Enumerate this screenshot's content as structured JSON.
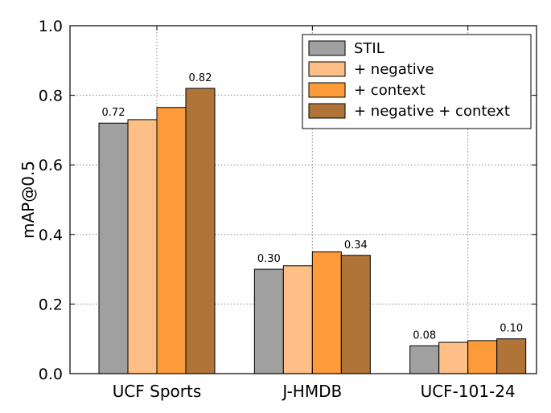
{
  "chart_data": {
    "type": "bar",
    "title": "",
    "xlabel": "",
    "ylabel": "mAP@0.5",
    "ylim": [
      0.0,
      1.0
    ],
    "yticks": [
      "0.0",
      "0.2",
      "0.4",
      "0.6",
      "0.8",
      "1.0"
    ],
    "grid": true,
    "legend_position": "top-right",
    "categories": [
      "UCF Sports",
      "J-HMDB",
      "UCF-101-24"
    ],
    "series": [
      {
        "name": "STIL",
        "color": "#a0a0a0",
        "values": [
          0.72,
          0.3,
          0.08
        ]
      },
      {
        "name": "+ negative",
        "color": "#fdbf85",
        "values": [
          0.73,
          0.31,
          0.09
        ]
      },
      {
        "name": "+ context",
        "color": "#fd9a3a",
        "values": [
          0.765,
          0.35,
          0.095
        ]
      },
      {
        "name": "+ negative + context",
        "color": "#b07438",
        "values": [
          0.82,
          0.34,
          0.1
        ]
      }
    ],
    "data_labels": [
      {
        "category": 0,
        "series": 0,
        "text": "0.72"
      },
      {
        "category": 0,
        "series": 3,
        "text": "0.82"
      },
      {
        "category": 1,
        "series": 0,
        "text": "0.30"
      },
      {
        "category": 1,
        "series": 3,
        "text": "0.34"
      },
      {
        "category": 2,
        "series": 0,
        "text": "0.08"
      },
      {
        "category": 2,
        "series": 3,
        "text": "0.10"
      }
    ]
  }
}
